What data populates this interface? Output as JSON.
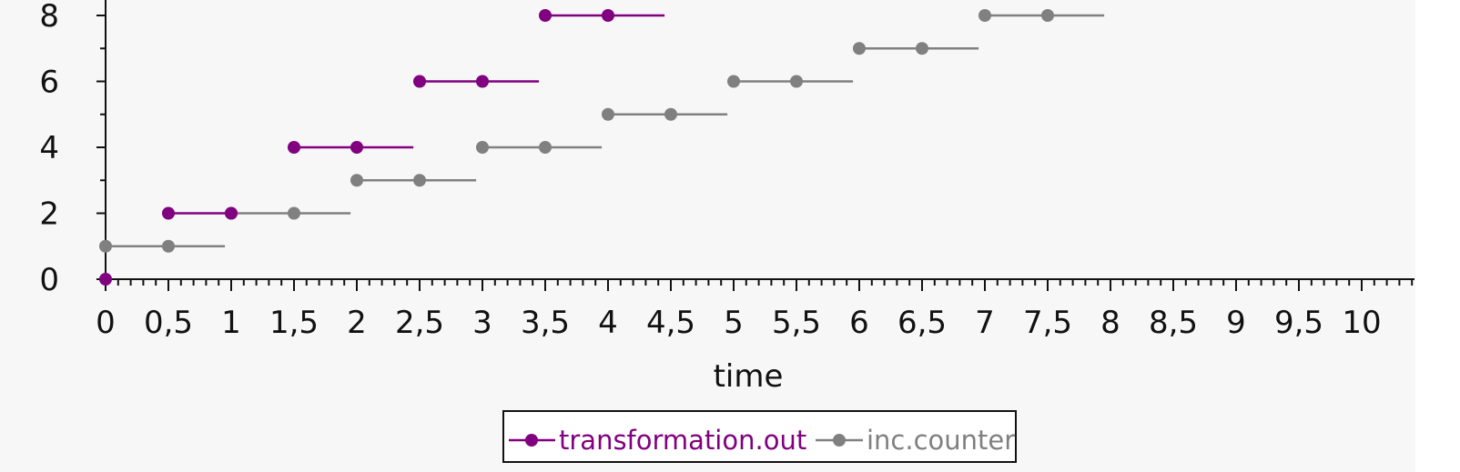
{
  "chart_data": {
    "type": "line",
    "title": "",
    "xlabel": "time",
    "ylabel": "",
    "xlim": [
      0,
      10
    ],
    "ylim": [
      0,
      8
    ],
    "x_ticks": [
      "0",
      "0,5",
      "1",
      "1,5",
      "2",
      "2,5",
      "3",
      "3,5",
      "4",
      "4,5",
      "5",
      "5,5",
      "6",
      "6,5",
      "7",
      "7,5",
      "8",
      "8,5",
      "9",
      "9,5",
      "10"
    ],
    "y_ticks": [
      "0",
      "2",
      "4",
      "6",
      "8"
    ],
    "grid": false,
    "legend_position": "bottom-center",
    "series": [
      {
        "name": "transformation.out",
        "color": "#800080",
        "segments": [
          {
            "points": [
              0
            ],
            "y": 0
          },
          {
            "points": [
              0.5,
              1.0
            ],
            "y": 2
          },
          {
            "points": [
              1.5,
              2.0
            ],
            "y": 4
          },
          {
            "points": [
              2.5,
              3.0
            ],
            "y": 6
          },
          {
            "points": [
              3.5,
              4.0
            ],
            "y": 8
          }
        ],
        "segment_end_x": [
          0,
          0.95,
          2.45,
          3.45,
          4.45
        ]
      },
      {
        "name": "inc.counter",
        "color": "#808080",
        "segments": [
          {
            "points": [
              0,
              0.5
            ],
            "y": 1
          },
          {
            "points": [
              1.0,
              1.5
            ],
            "y": 2
          },
          {
            "points": [
              2.0,
              2.5
            ],
            "y": 3
          },
          {
            "points": [
              3.0,
              3.5
            ],
            "y": 4
          },
          {
            "points": [
              4.0,
              4.5
            ],
            "y": 5
          },
          {
            "points": [
              5.0,
              5.5
            ],
            "y": 6
          },
          {
            "points": [
              6.0,
              6.5
            ],
            "y": 7
          },
          {
            "points": [
              7.0,
              7.5
            ],
            "y": 8
          }
        ],
        "segment_end_x": [
          0.95,
          1.95,
          2.95,
          3.95,
          4.95,
          5.95,
          6.95,
          7.95
        ]
      }
    ]
  }
}
